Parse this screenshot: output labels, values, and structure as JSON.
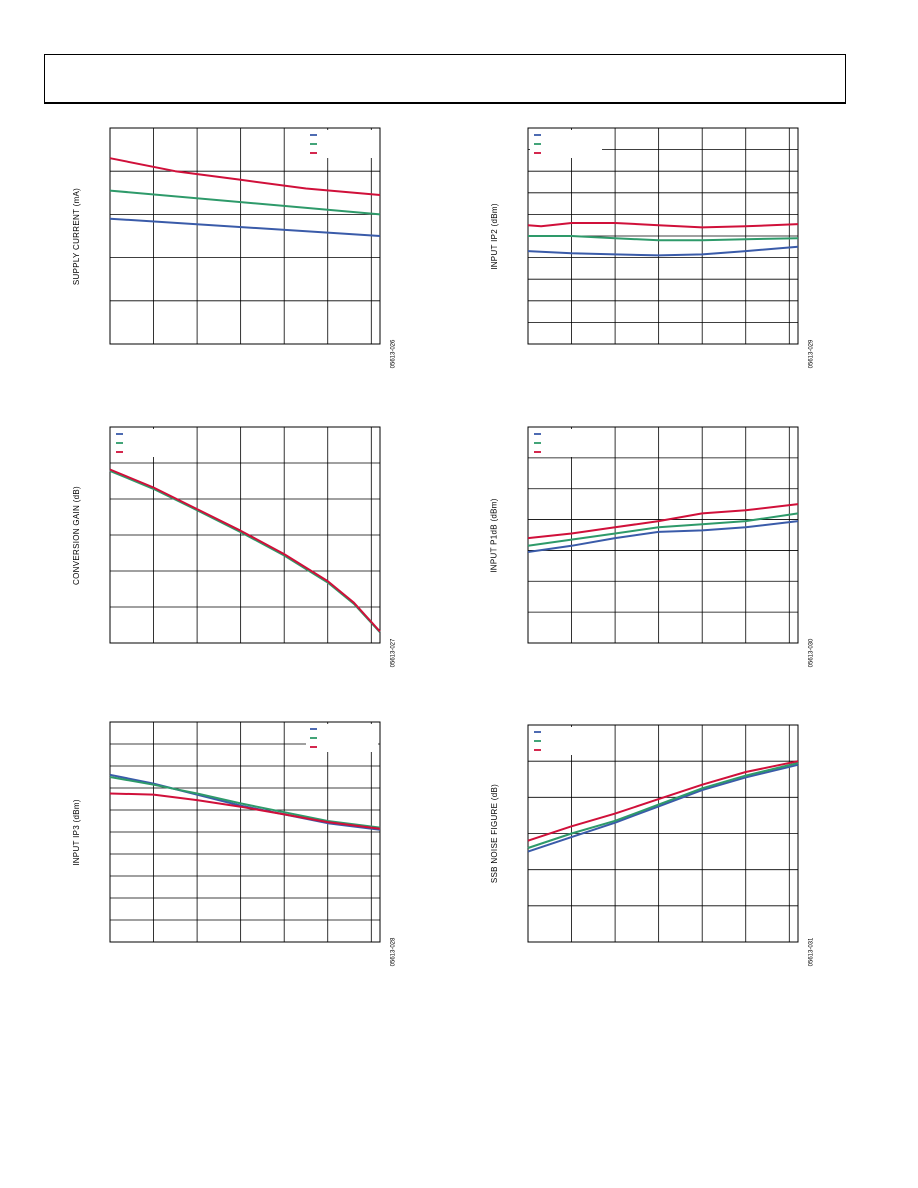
{
  "colors": {
    "blue": "#3a5ba9",
    "green": "#2e9a6a",
    "red": "#d0103a",
    "grid": "#000000"
  },
  "chart_data": [
    {
      "type": "line",
      "ylabel": "SUPPLY CURRENT (mA)",
      "figure_id": "05613-026",
      "legend": "top-right",
      "grid": true,
      "xlim": [
        0,
        6.2
      ],
      "ylim": [
        0,
        5
      ],
      "x_gridlines": 6,
      "y_gridlines": 5,
      "series": [
        {
          "color": "blue",
          "x": [
            0,
            6.2
          ],
          "y": [
            2.9,
            2.5
          ]
        },
        {
          "color": "green",
          "x": [
            0,
            6.2
          ],
          "y": [
            3.55,
            3.0
          ]
        },
        {
          "color": "red",
          "x": [
            0,
            1.5,
            3,
            4.5,
            6.2
          ],
          "y": [
            4.3,
            4.0,
            3.8,
            3.6,
            3.45
          ]
        }
      ]
    },
    {
      "type": "line",
      "ylabel": "INPUT IP2 (dBm)",
      "figure_id": "05613-029",
      "legend": "top-left",
      "grid": true,
      "xlim": [
        0,
        6.2
      ],
      "ylim": [
        0,
        10
      ],
      "x_gridlines": 6,
      "y_gridlines": 10,
      "series": [
        {
          "color": "blue",
          "x": [
            0,
            1,
            2,
            3,
            4,
            5,
            6.2
          ],
          "y": [
            4.3,
            4.2,
            4.15,
            4.1,
            4.15,
            4.3,
            4.5
          ]
        },
        {
          "color": "green",
          "x": [
            0,
            1,
            2,
            3,
            4,
            5,
            6.2
          ],
          "y": [
            5.0,
            5.0,
            4.9,
            4.8,
            4.8,
            4.85,
            4.9
          ]
        },
        {
          "color": "red",
          "x": [
            0,
            0.3,
            1,
            2,
            3,
            4,
            5,
            6.2
          ],
          "y": [
            5.5,
            5.45,
            5.6,
            5.6,
            5.5,
            5.4,
            5.45,
            5.55
          ]
        }
      ]
    },
    {
      "type": "line",
      "ylabel": "CONVERSION GAIN (dB)",
      "figure_id": "05613-027",
      "legend": "top-left",
      "grid": true,
      "xlim": [
        0,
        6.2
      ],
      "ylim": [
        0,
        6
      ],
      "x_gridlines": 6,
      "y_gridlines": 6,
      "series": [
        {
          "color": "blue",
          "x": [
            0,
            1,
            2,
            3,
            4,
            5,
            5.6,
            6.2
          ],
          "y": [
            4.8,
            4.3,
            3.7,
            3.1,
            2.45,
            1.7,
            1.1,
            0.3
          ]
        },
        {
          "color": "green",
          "x": [
            0,
            1,
            2,
            3,
            4,
            5,
            5.6,
            6.2
          ],
          "y": [
            4.78,
            4.28,
            3.69,
            3.08,
            2.43,
            1.68,
            1.09,
            0.3
          ]
        },
        {
          "color": "red",
          "x": [
            0,
            1,
            2,
            3,
            4,
            5,
            5.6,
            6.2
          ],
          "y": [
            4.82,
            4.32,
            3.72,
            3.12,
            2.47,
            1.72,
            1.12,
            0.32
          ]
        }
      ]
    },
    {
      "type": "line",
      "ylabel": "INPUT P1dB (dBm)",
      "figure_id": "05613-030",
      "legend": "top-left",
      "grid": true,
      "xlim": [
        0,
        6.2
      ],
      "ylim": [
        0,
        7
      ],
      "x_gridlines": 6,
      "y_gridlines": 7,
      "series": [
        {
          "color": "blue",
          "x": [
            0,
            1,
            2,
            3,
            4,
            5,
            6.2
          ],
          "y": [
            2.95,
            3.15,
            3.4,
            3.6,
            3.65,
            3.75,
            3.95
          ]
        },
        {
          "color": "green",
          "x": [
            0,
            1,
            2,
            3,
            4,
            5,
            6.2
          ],
          "y": [
            3.15,
            3.35,
            3.55,
            3.75,
            3.85,
            3.95,
            4.2
          ]
        },
        {
          "color": "red",
          "x": [
            0,
            1,
            2,
            3,
            4,
            5,
            6.2
          ],
          "y": [
            3.4,
            3.55,
            3.75,
            3.95,
            4.2,
            4.3,
            4.5
          ]
        }
      ]
    },
    {
      "type": "line",
      "ylabel": "INPUT IP3 (dBm)",
      "figure_id": "05613-028",
      "legend": "top-right",
      "grid": true,
      "xlim": [
        0,
        6.2
      ],
      "ylim": [
        0,
        10
      ],
      "x_gridlines": 6,
      "y_gridlines": 10,
      "series": [
        {
          "color": "blue",
          "x": [
            0,
            1,
            2,
            3,
            4,
            5,
            6.2
          ],
          "y": [
            7.6,
            7.2,
            6.7,
            6.2,
            5.8,
            5.4,
            5.1
          ]
        },
        {
          "color": "green",
          "x": [
            0,
            1,
            2,
            3,
            4,
            5,
            6.2
          ],
          "y": [
            7.5,
            7.15,
            6.75,
            6.3,
            5.9,
            5.5,
            5.2
          ]
        },
        {
          "color": "red",
          "x": [
            0,
            1,
            2,
            3,
            4,
            5,
            6.2
          ],
          "y": [
            6.75,
            6.7,
            6.45,
            6.15,
            5.8,
            5.45,
            5.15
          ]
        }
      ]
    },
    {
      "type": "line",
      "ylabel": "SSB NOISE FIGURE (dB)",
      "figure_id": "05613-031",
      "legend": "top-left",
      "grid": true,
      "xlim": [
        0,
        6.2
      ],
      "ylim": [
        0,
        6
      ],
      "x_gridlines": 6,
      "y_gridlines": 6,
      "series": [
        {
          "color": "blue",
          "x": [
            0,
            1,
            2,
            3,
            4,
            5,
            6.2
          ],
          "y": [
            2.5,
            2.9,
            3.3,
            3.75,
            4.2,
            4.55,
            4.9
          ]
        },
        {
          "color": "green",
          "x": [
            0,
            1,
            2,
            3,
            4,
            5,
            6.2
          ],
          "y": [
            2.6,
            3.0,
            3.35,
            3.8,
            4.25,
            4.6,
            4.95
          ]
        },
        {
          "color": "red",
          "x": [
            0,
            1,
            2,
            3,
            4,
            5,
            6.2
          ],
          "y": [
            2.8,
            3.2,
            3.55,
            3.95,
            4.35,
            4.7,
            5.0
          ]
        }
      ]
    }
  ]
}
